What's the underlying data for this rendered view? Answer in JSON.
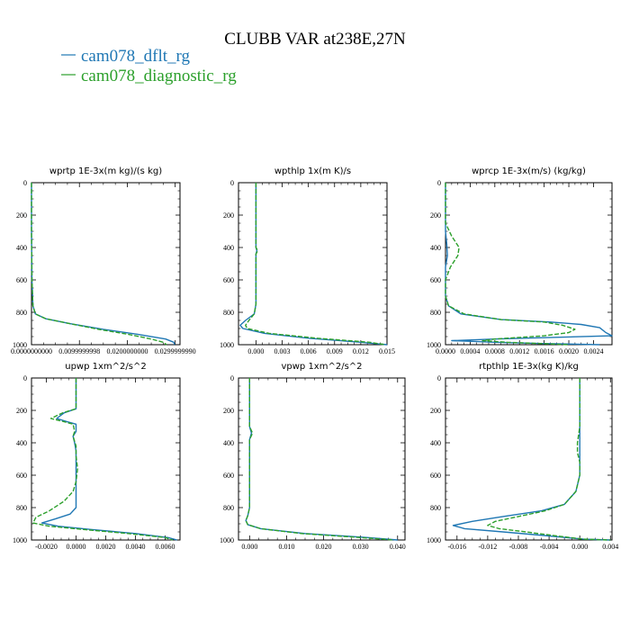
{
  "figure": {
    "title": "CLUBB VAR at238E,27N",
    "legend": [
      {
        "name": "cam078_dflt_rg",
        "color": "#1f77b4"
      },
      {
        "name": "cam078_diagnostic_rg",
        "color": "#2ca02c"
      }
    ]
  },
  "chart_data": [
    {
      "type": "line",
      "title": "wprtp  1E-3x(m kg)/(s kg)",
      "xlim": [
        0,
        0.031
      ],
      "ylim": [
        1000,
        0
      ],
      "xticks": [
        0,
        0.01,
        0.02,
        0.03
      ],
      "xticklabels": [
        "0.0000000000",
        "0.0099999998",
        "0.0200000000",
        "0.0299999990"
      ],
      "yticks": [
        0,
        200,
        400,
        600,
        800,
        1000
      ],
      "series": [
        {
          "name": "cam078_dflt_rg",
          "points": [
            [
              0,
              0
            ],
            [
              0,
              300
            ],
            [
              0.0001,
              600
            ],
            [
              0.0003,
              760
            ],
            [
              0.0008,
              810
            ],
            [
              0.003,
              840
            ],
            [
              0.008,
              870
            ],
            [
              0.015,
              905
            ],
            [
              0.022,
              935
            ],
            [
              0.028,
              965
            ],
            [
              0.0297,
              985
            ],
            [
              0.0299,
              1000
            ]
          ]
        },
        {
          "name": "cam078_diagnostic_rg",
          "points": [
            [
              0,
              0
            ],
            [
              0,
              300
            ],
            [
              0.0001,
              600
            ],
            [
              0.0003,
              760
            ],
            [
              0.0008,
              810
            ],
            [
              0.003,
              840
            ],
            [
              0.008,
              870
            ],
            [
              0.014,
              905
            ],
            [
              0.02,
              935
            ],
            [
              0.025,
              965
            ],
            [
              0.0275,
              985
            ],
            [
              0.0282,
              1000
            ]
          ]
        }
      ]
    },
    {
      "type": "line",
      "title": "wpthlp  1x(m K)/s",
      "xlim": [
        -0.002,
        0.015
      ],
      "ylim": [
        1000,
        0
      ],
      "xticks": [
        0,
        0.003,
        0.006,
        0.009,
        0.012,
        0.015
      ],
      "xticklabels": [
        "0.000",
        "0.003",
        "0.006",
        "0.009",
        "0.012",
        "0.015"
      ],
      "yticks": [
        0,
        200,
        400,
        600,
        800,
        1000
      ],
      "series": [
        {
          "name": "cam078_dflt_rg",
          "points": [
            [
              0,
              0
            ],
            [
              0,
              400
            ],
            [
              0.0001,
              420
            ],
            [
              0,
              440
            ],
            [
              0,
              750
            ],
            [
              -0.0002,
              810
            ],
            [
              -0.0012,
              850
            ],
            [
              -0.0018,
              880
            ],
            [
              -0.0015,
              900
            ],
            [
              0.001,
              930
            ],
            [
              0.006,
              960
            ],
            [
              0.012,
              985
            ],
            [
              0.015,
              1000
            ]
          ]
        },
        {
          "name": "cam078_diagnostic_rg",
          "points": [
            [
              0,
              0
            ],
            [
              0,
              400
            ],
            [
              0.0002,
              420
            ],
            [
              0,
              440
            ],
            [
              0,
              750
            ],
            [
              -0.0002,
              810
            ],
            [
              -0.0008,
              850
            ],
            [
              -0.0012,
              880
            ],
            [
              -0.001,
              900
            ],
            [
              0.0015,
              930
            ],
            [
              0.007,
              960
            ],
            [
              0.013,
              985
            ],
            [
              0.0148,
              1000
            ]
          ]
        }
      ]
    },
    {
      "type": "line",
      "title": "wprcp  1E-3x(m/s) (kg/kg)",
      "xlim": [
        0,
        0.0027
      ],
      "ylim": [
        1000,
        0
      ],
      "xticks": [
        0,
        0.0004,
        0.0008,
        0.0012,
        0.0016,
        0.002,
        0.0024
      ],
      "xticklabels": [
        "0.0000",
        "0.0004",
        "0.0008",
        "0.0012",
        "0.0016",
        "0.0020",
        "0.0024"
      ],
      "yticks": [
        0,
        200,
        400,
        600,
        800,
        1000
      ],
      "series": [
        {
          "name": "cam078_dflt_rg",
          "points": [
            [
              0,
              0
            ],
            [
              0,
              300
            ],
            [
              2e-05,
              380
            ],
            [
              3e-05,
              450
            ],
            [
              0,
              520
            ],
            [
              0,
              700
            ],
            [
              5e-05,
              760
            ],
            [
              0.00025,
              810
            ],
            [
              0.0009,
              845
            ],
            [
              0.0017,
              860
            ],
            [
              0.0022,
              875
            ],
            [
              0.0025,
              895
            ],
            [
              0.0026,
              925
            ],
            [
              0.0027,
              945
            ],
            [
              0.0008,
              965
            ],
            [
              0.0001,
              975
            ],
            [
              0.0008,
              985
            ],
            [
              0.0015,
              992
            ],
            [
              0.0025,
              1000
            ]
          ]
        },
        {
          "name": "cam078_diagnostic_rg",
          "points": [
            [
              0,
              0
            ],
            [
              0,
              250
            ],
            [
              0.0001,
              330
            ],
            [
              0.00022,
              400
            ],
            [
              0.0002,
              450
            ],
            [
              8e-05,
              520
            ],
            [
              0,
              600
            ],
            [
              0,
              700
            ],
            [
              5e-05,
              760
            ],
            [
              0.0003,
              810
            ],
            [
              0.0009,
              845
            ],
            [
              0.0016,
              860
            ],
            [
              0.0019,
              880
            ],
            [
              0.0021,
              905
            ],
            [
              0.002,
              925
            ],
            [
              0.0016,
              945
            ],
            [
              0.0008,
              965
            ],
            [
              0.0006,
              975
            ],
            [
              0.001,
              985
            ],
            [
              0.0015,
              992
            ],
            [
              0.002,
              1000
            ]
          ]
        }
      ]
    },
    {
      "type": "line",
      "title": "upwp   1xm^2/s^2",
      "xlim": [
        -0.003,
        0.007
      ],
      "ylim": [
        1000,
        0
      ],
      "xticks": [
        -0.002,
        0,
        0.002,
        0.004,
        0.006
      ],
      "xticklabels": [
        "-0.0020",
        "0.0000",
        "0.0020",
        "0.0040",
        "0.0060"
      ],
      "yticks": [
        0,
        200,
        400,
        600,
        800,
        1000
      ],
      "series": [
        {
          "name": "cam078_dflt_rg",
          "points": [
            [
              0,
              0
            ],
            [
              0,
              190
            ],
            [
              -0.0008,
              215
            ],
            [
              -0.0013,
              250
            ],
            [
              -0.0006,
              270
            ],
            [
              0,
              285
            ],
            [
              0,
              330
            ],
            [
              -0.0002,
              360
            ],
            [
              -0.0001,
              400
            ],
            [
              0,
              450
            ],
            [
              0,
              800
            ],
            [
              -0.0004,
              840
            ],
            [
              -0.0014,
              870
            ],
            [
              -0.0023,
              895
            ],
            [
              -0.0012,
              915
            ],
            [
              0.001,
              935
            ],
            [
              0.004,
              960
            ],
            [
              0.0062,
              985
            ],
            [
              0.0068,
              1000
            ]
          ]
        },
        {
          "name": "cam078_diagnostic_rg",
          "points": [
            [
              0,
              0
            ],
            [
              0,
              190
            ],
            [
              -0.0009,
              215
            ],
            [
              -0.0017,
              250
            ],
            [
              -0.0008,
              270
            ],
            [
              -0.0002,
              285
            ],
            [
              -0.0001,
              330
            ],
            [
              -0.0002,
              360
            ],
            [
              0,
              420
            ],
            [
              0,
              480
            ],
            [
              0.0001,
              560
            ],
            [
              0,
              640
            ],
            [
              -0.0002,
              700
            ],
            [
              -0.0008,
              760
            ],
            [
              -0.0018,
              820
            ],
            [
              -0.0027,
              860
            ],
            [
              -0.0029,
              895
            ],
            [
              -0.0018,
              915
            ],
            [
              0.0005,
              935
            ],
            [
              0.0035,
              960
            ],
            [
              0.006,
              985
            ],
            [
              0.0065,
              1000
            ]
          ]
        }
      ]
    },
    {
      "type": "line",
      "title": "vpwp   1xm^2/s^2",
      "xlim": [
        -0.003,
        0.042
      ],
      "ylim": [
        1000,
        0
      ],
      "xticks": [
        0,
        0.01,
        0.02,
        0.03,
        0.04
      ],
      "xticklabels": [
        "0.000",
        "0.010",
        "0.020",
        "0.030",
        "0.040"
      ],
      "yticks": [
        0,
        200,
        400,
        600,
        800,
        1000
      ],
      "series": [
        {
          "name": "cam078_dflt_rg",
          "points": [
            [
              0,
              0
            ],
            [
              0,
              300
            ],
            [
              0.0005,
              340
            ],
            [
              0,
              380
            ],
            [
              0,
              800
            ],
            [
              -0.0005,
              850
            ],
            [
              -0.001,
              880
            ],
            [
              -0.0005,
              905
            ],
            [
              0.003,
              930
            ],
            [
              0.015,
              960
            ],
            [
              0.032,
              985
            ],
            [
              0.04,
              1000
            ]
          ]
        },
        {
          "name": "cam078_diagnostic_rg",
          "points": [
            [
              0,
              0
            ],
            [
              0,
              300
            ],
            [
              0.0008,
              340
            ],
            [
              0,
              380
            ],
            [
              0,
              800
            ],
            [
              -0.0005,
              850
            ],
            [
              -0.001,
              880
            ],
            [
              -0.0005,
              905
            ],
            [
              0.003,
              930
            ],
            [
              0.014,
              960
            ],
            [
              0.03,
              985
            ],
            [
              0.039,
              1000
            ]
          ]
        }
      ]
    },
    {
      "type": "line",
      "title": "rtpthlp   1E-3x(kg K)/kg",
      "xlim": [
        -0.0175,
        0.0042
      ],
      "ylim": [
        1000,
        0
      ],
      "xticks": [
        -0.016,
        -0.012,
        -0.008,
        -0.004,
        0,
        0.004
      ],
      "xticklabels": [
        "-0.016",
        "-0.012",
        "-0.008",
        "-0.004",
        "0.000",
        "0.004"
      ],
      "yticks": [
        0,
        200,
        400,
        600,
        800,
        1000
      ],
      "series": [
        {
          "name": "cam078_dflt_rg",
          "points": [
            [
              0,
              0
            ],
            [
              0,
              400
            ],
            [
              0,
              600
            ],
            [
              -0.0005,
              700
            ],
            [
              -0.002,
              780
            ],
            [
              -0.005,
              820
            ],
            [
              -0.01,
              855
            ],
            [
              -0.014,
              885
            ],
            [
              -0.0165,
              910
            ],
            [
              -0.015,
              930
            ],
            [
              -0.01,
              950
            ],
            [
              -0.004,
              975
            ],
            [
              0.0005,
              995
            ],
            [
              0.004,
              1000
            ]
          ]
        },
        {
          "name": "cam078_diagnostic_rg",
          "points": [
            [
              0,
              0
            ],
            [
              0,
              300
            ],
            [
              -0.0003,
              400
            ],
            [
              -0.0003,
              460
            ],
            [
              0,
              520
            ],
            [
              0,
              600
            ],
            [
              -0.0005,
              700
            ],
            [
              -0.002,
              780
            ],
            [
              -0.0045,
              820
            ],
            [
              -0.008,
              855
            ],
            [
              -0.011,
              885
            ],
            [
              -0.012,
              910
            ],
            [
              -0.0105,
              930
            ],
            [
              -0.007,
              950
            ],
            [
              -0.003,
              975
            ],
            [
              0.0005,
              995
            ],
            [
              0.004,
              1000
            ]
          ]
        }
      ]
    }
  ]
}
